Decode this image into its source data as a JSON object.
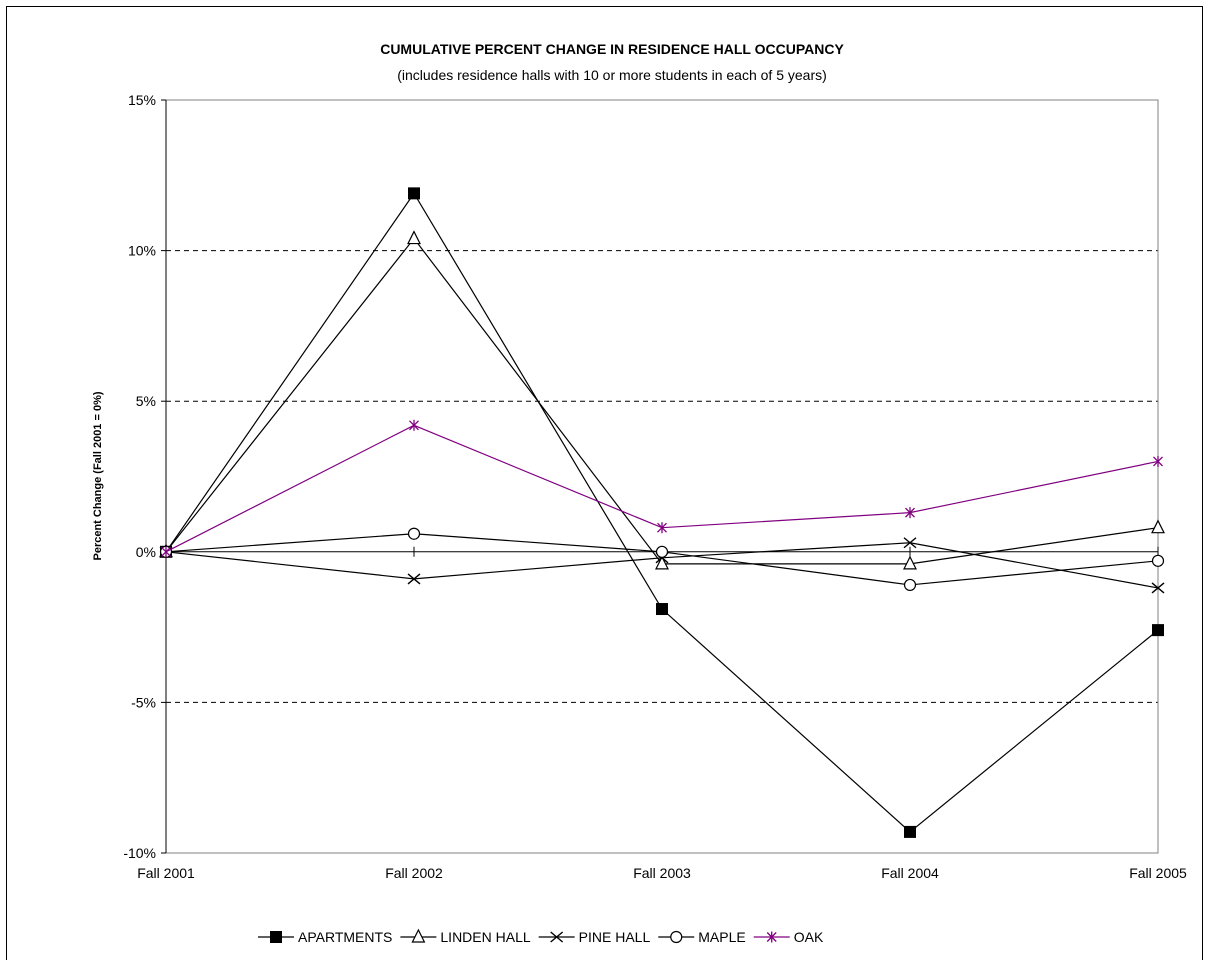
{
  "chart_data": {
    "type": "line",
    "title": "CUMULATIVE PERCENT CHANGE IN RESIDENCE HALL OCCUPANCY",
    "subtitle": "(includes residence halls with 10 or more students in each of 5 years)",
    "xlabel": "",
    "ylabel": "Percent Change (Fall 2001 = 0%)",
    "categories": [
      "Fall 2001",
      "Fall 2002",
      "Fall 2003",
      "Fall 2004",
      "Fall 2005"
    ],
    "ylim": [
      -10,
      15
    ],
    "y_ticks": [
      15,
      10,
      5,
      0,
      -5,
      -10
    ],
    "y_tick_labels": [
      "15%",
      "10%",
      "5%",
      "0%",
      "-5%",
      "-10%"
    ],
    "grid": "dashed horizontal at 5% intervals",
    "legend_position": "bottom",
    "series": [
      {
        "name": "APARTMENTS",
        "marker": "filled-square",
        "color": "#000000",
        "values": [
          0,
          11.9,
          -1.9,
          -9.3,
          -2.6
        ]
      },
      {
        "name": "LINDEN HALL",
        "marker": "triangle",
        "color": "#000000",
        "values": [
          0,
          10.4,
          -0.4,
          -0.4,
          0.8
        ]
      },
      {
        "name": "PINE HALL",
        "marker": "x",
        "color": "#000000",
        "values": [
          0,
          -0.9,
          -0.2,
          0.3,
          -1.2
        ]
      },
      {
        "name": "MAPLE",
        "marker": "circle",
        "color": "#000000",
        "values": [
          0,
          0.6,
          0.0,
          -1.1,
          -0.3
        ]
      },
      {
        "name": "OAK",
        "marker": "asterisk",
        "color": "#800080",
        "values": [
          0,
          4.2,
          0.8,
          1.3,
          3.0
        ]
      }
    ]
  }
}
